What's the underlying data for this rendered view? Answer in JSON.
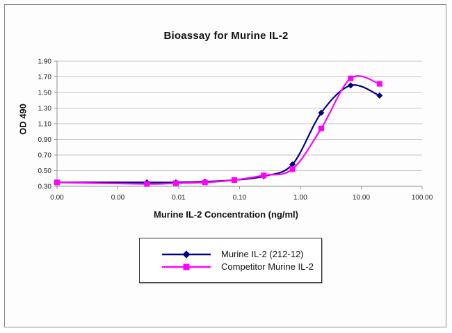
{
  "chart_data": {
    "type": "line",
    "title": "Bioassay for Murine IL-2",
    "xlabel": "Murine IL-2 Concentration (ng/ml)",
    "ylabel": "OD 490",
    "x_scale": "log",
    "xlim_log10": [
      -4,
      2
    ],
    "x_tick_labels": [
      "0.00",
      "0.00",
      "0.01",
      "0.10",
      "1.00",
      "10.00",
      "100.00"
    ],
    "y_tick_labels": [
      "0.30",
      "0.50",
      "0.70",
      "0.90",
      "1.10",
      "1.30",
      "1.50",
      "1.70",
      "1.90"
    ],
    "ylim": [
      0.3,
      1.9
    ],
    "grid": "horizontal",
    "legend_position": "bottom-center-boxed",
    "x_ng_ml": [
      0,
      0.003,
      0.009,
      0.027,
      0.082,
      0.25,
      0.74,
      2.2,
      6.7,
      20
    ],
    "zero_plotted_at_axis_minimum": true,
    "series": [
      {
        "name": "Murine IL-2 (212-12)",
        "color": "#000080",
        "marker": "diamond",
        "values": [
          0.35,
          0.35,
          0.35,
          0.36,
          0.38,
          0.43,
          0.58,
          1.24,
          1.59,
          1.46
        ]
      },
      {
        "name": "Competitor Murine IL-2",
        "color": "#FF00FF",
        "marker": "square",
        "values": [
          0.35,
          0.33,
          0.34,
          0.35,
          0.38,
          0.44,
          0.52,
          1.04,
          1.68,
          1.61
        ]
      }
    ]
  },
  "colors": {
    "navy": "#000080",
    "magenta": "#FF00FF",
    "gridline": "#c4c4c4",
    "axis": "#909090",
    "tick_text": "#1a1a1a",
    "figure_border": "#8a8a8a",
    "legend_border": "#2e2e2e"
  }
}
